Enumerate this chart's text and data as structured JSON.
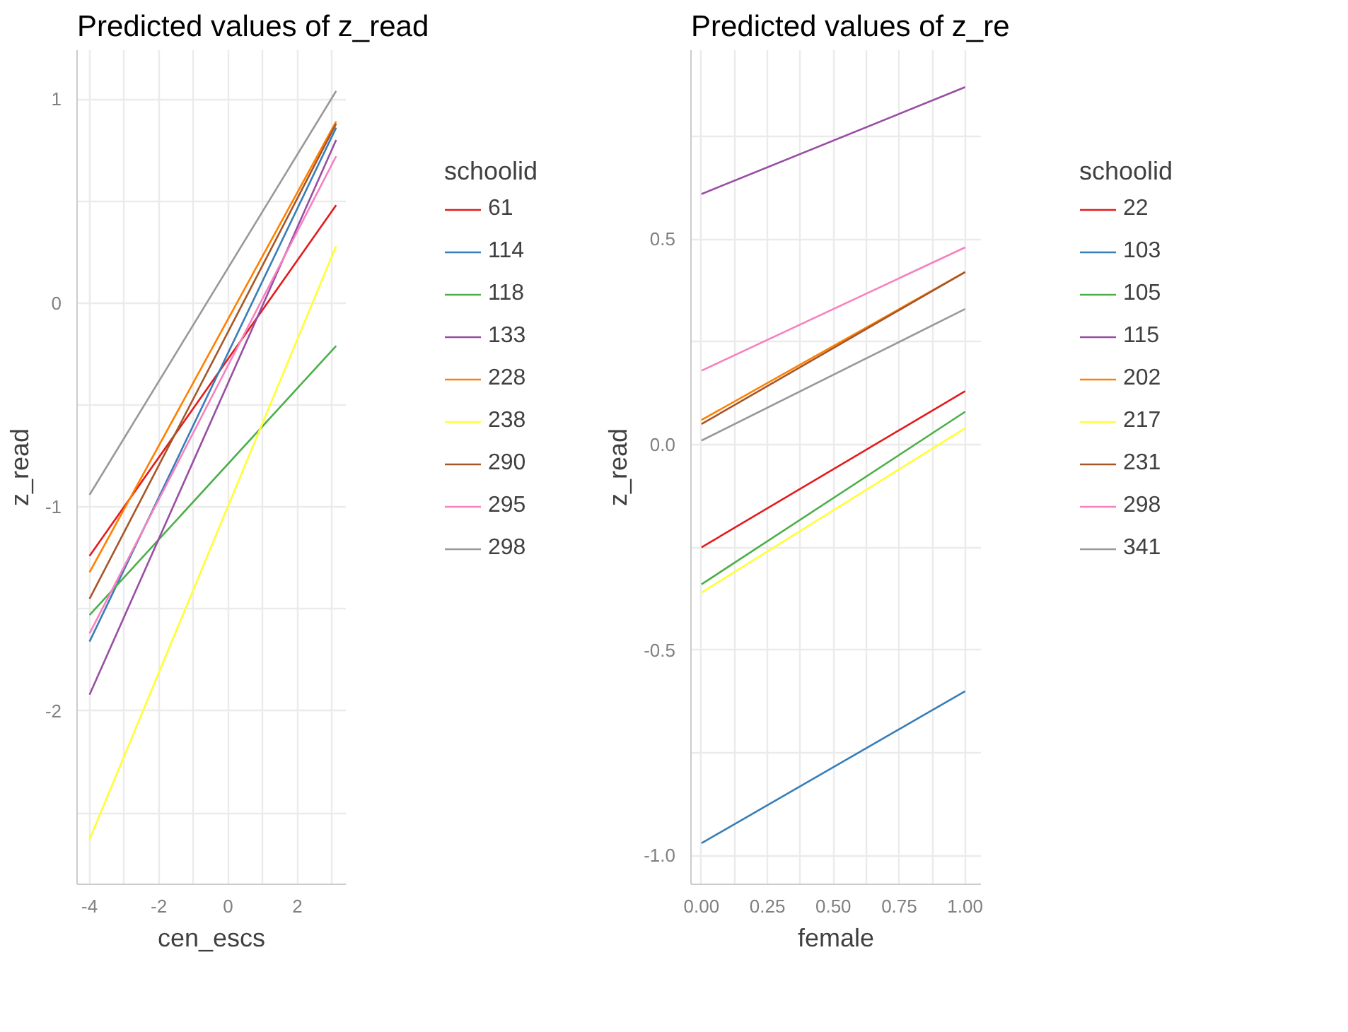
{
  "chart_data": [
    {
      "type": "line",
      "title": "Predicted values of z_read",
      "xlabel": "cen_escs",
      "ylabel": "z_read",
      "legend_title": "schoolid",
      "legend": "right",
      "grid": true,
      "xlim": [
        -4.36,
        3.4
      ],
      "xticks": [
        -4,
        {
          "value": -3,
          "label": null
        },
        -2,
        {
          "value": -1,
          "label": null
        },
        0,
        {
          "value": 1,
          "label": null
        },
        2,
        {
          "value": 3,
          "label": null
        }
      ],
      "ylim": [
        -2.85,
        1.24
      ],
      "yticks": [
        {
          "value": -2.5,
          "label": null
        },
        -2,
        {
          "value": -1.5,
          "label": null
        },
        -1,
        {
          "value": -0.5,
          "label": null
        },
        0,
        {
          "value": 0.5,
          "label": null
        },
        1
      ],
      "x": [
        -4,
        3.12
      ],
      "series": [
        {
          "name": "61",
          "color": "#e41a1c",
          "values": [
            -1.24,
            0.48
          ]
        },
        {
          "name": "114",
          "color": "#377eb8",
          "values": [
            -1.66,
            0.86
          ]
        },
        {
          "name": "118",
          "color": "#4daf4a",
          "values": [
            -1.53,
            -0.21
          ]
        },
        {
          "name": "133",
          "color": "#984ea3",
          "values": [
            -1.92,
            0.8
          ]
        },
        {
          "name": "228",
          "color": "#ff7f00",
          "values": [
            -1.32,
            0.89
          ]
        },
        {
          "name": "238",
          "color": "#ffff33",
          "values": [
            -2.63,
            0.28
          ]
        },
        {
          "name": "290",
          "color": "#a65628",
          "values": [
            -1.45,
            0.88
          ]
        },
        {
          "name": "295",
          "color": "#f781bf",
          "values": [
            -1.62,
            0.72
          ]
        },
        {
          "name": "298",
          "color": "#999999",
          "values": [
            -0.94,
            1.04
          ]
        }
      ]
    },
    {
      "type": "line",
      "title": "Predicted values of z_re",
      "xlabel": "female",
      "ylabel": "z_read",
      "legend_title": "schoolid",
      "legend": "right",
      "grid": true,
      "xlim": [
        -0.04,
        1.06
      ],
      "xticks": [
        {
          "value": 0,
          "label": "0.00"
        },
        {
          "value": 0.125,
          "label": null
        },
        {
          "value": 0.25,
          "label": "0.25"
        },
        {
          "value": 0.375,
          "label": null
        },
        {
          "value": 0.5,
          "label": "0.50"
        },
        {
          "value": 0.625,
          "label": null
        },
        {
          "value": 0.75,
          "label": "0.75"
        },
        {
          "value": 0.875,
          "label": null
        },
        {
          "value": 1,
          "label": "1.00"
        }
      ],
      "ylim": [
        -1.07,
        0.96
      ],
      "yticks": [
        {
          "value": -1,
          "label": "-1.0"
        },
        {
          "value": -0.75,
          "label": null
        },
        {
          "value": -0.5,
          "label": "-0.5"
        },
        {
          "value": -0.25,
          "label": null
        },
        {
          "value": 0,
          "label": "0.0"
        },
        {
          "value": 0.25,
          "label": null
        },
        {
          "value": 0.5,
          "label": "0.5"
        },
        {
          "value": 0.75,
          "label": null
        }
      ],
      "x": [
        0,
        1
      ],
      "series": [
        {
          "name": "22",
          "color": "#e41a1c",
          "values": [
            -0.25,
            0.13
          ]
        },
        {
          "name": "103",
          "color": "#377eb8",
          "values": [
            -0.97,
            -0.6
          ]
        },
        {
          "name": "105",
          "color": "#4daf4a",
          "values": [
            -0.34,
            0.08
          ]
        },
        {
          "name": "115",
          "color": "#984ea3",
          "values": [
            0.61,
            0.87
          ]
        },
        {
          "name": "202",
          "color": "#ff7f00",
          "values": [
            0.06,
            0.42
          ]
        },
        {
          "name": "217",
          "color": "#ffff33",
          "values": [
            -0.36,
            0.04
          ]
        },
        {
          "name": "231",
          "color": "#a65628",
          "values": [
            0.05,
            0.42
          ]
        },
        {
          "name": "298",
          "color": "#f781bf",
          "values": [
            0.18,
            0.48
          ]
        },
        {
          "name": "341",
          "color": "#999999",
          "values": [
            0.01,
            0.33
          ]
        }
      ]
    }
  ]
}
